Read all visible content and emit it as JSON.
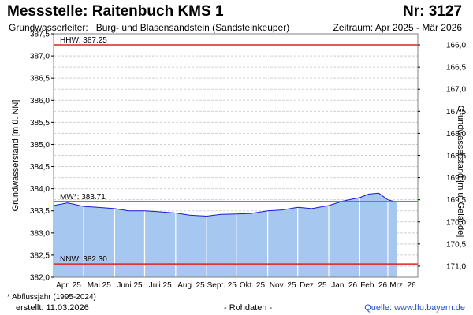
{
  "header": {
    "title": "Messstelle: Raitenbuch KMS 1",
    "number": "Nr: 3127",
    "aquifer_label": "Grundwasserleiter:",
    "aquifer_value": "Burg- und Blasensandstein (Sandsteinkeuper)",
    "period": "Zeitraum: Apr 2025 - Mär 2026"
  },
  "footer": {
    "footnote": "* Abflussjahr (1995-2024)",
    "created": "erstellt:  11.03.2026",
    "rawdata": "- Rohdaten -",
    "source": "Quelle: www.lfu.bayern.de"
  },
  "colors": {
    "area_fill": "#a6c8f0",
    "series_line": "#1a1adc",
    "hhw_line": "#e02020",
    "nnw_line": "#e02020",
    "mw_line": "#2ca02c",
    "grid": "#d0d0d0",
    "month_grid": "#ffffff"
  },
  "chart_data": {
    "type": "area",
    "xlabel": "",
    "ylabel": "Grundwasserstand [m ü. NN]",
    "ylabel_right": "Grundwasserstand [m u. Gelände]",
    "ylim": [
      382.0,
      387.5
    ],
    "yticks": [
      "387,5",
      "387,0",
      "386,5",
      "386,0",
      "385,5",
      "385,0",
      "384,5",
      "384,0",
      "383,5",
      "383,0",
      "382,5",
      "382,0"
    ],
    "y_right_ticks": [
      "166,0",
      "166,5",
      "167,0",
      "167,5",
      "168,0",
      "168,5",
      "169,0",
      "169,5",
      "170,0",
      "170,5",
      "171,0"
    ],
    "month_ticks": [
      "Apr. 25",
      "Mai 25",
      "Juni 25",
      "Juli 25",
      "Aug. 25",
      "Sept. 25",
      "Okt. 25",
      "Nov. 25",
      "Dez. 25",
      "Jan. 26",
      "Feb. 26",
      "Mrz. 26"
    ],
    "grid": true,
    "reference_lines": [
      {
        "label": "HHW: 387.25",
        "value": 387.25,
        "color": "#e02020"
      },
      {
        "label": "MW*: 383.71",
        "value": 383.71,
        "color": "#2ca02c"
      },
      {
        "label": "NNW: 382.30",
        "value": 382.3,
        "color": "#e02020"
      }
    ],
    "series": [
      {
        "x": [
          "2025-04-01",
          "2025-04-15",
          "2025-05-01",
          "2025-05-15",
          "2025-06-01",
          "2025-06-15",
          "2025-07-01",
          "2025-07-15",
          "2025-08-01",
          "2025-08-15",
          "2025-09-01",
          "2025-09-15",
          "2025-10-01",
          "2025-10-15",
          "2025-11-01",
          "2025-11-15",
          "2025-12-01",
          "2025-12-15",
          "2026-01-01",
          "2026-01-15",
          "2026-02-01",
          "2026-02-10",
          "2026-02-20",
          "2026-03-01",
          "2026-03-10"
        ],
        "values": [
          383.62,
          383.68,
          383.6,
          383.58,
          383.55,
          383.5,
          383.5,
          383.48,
          383.45,
          383.4,
          383.38,
          383.42,
          383.43,
          383.44,
          383.5,
          383.52,
          383.58,
          383.55,
          383.62,
          383.72,
          383.8,
          383.88,
          383.9,
          383.75,
          383.7
        ]
      }
    ]
  }
}
